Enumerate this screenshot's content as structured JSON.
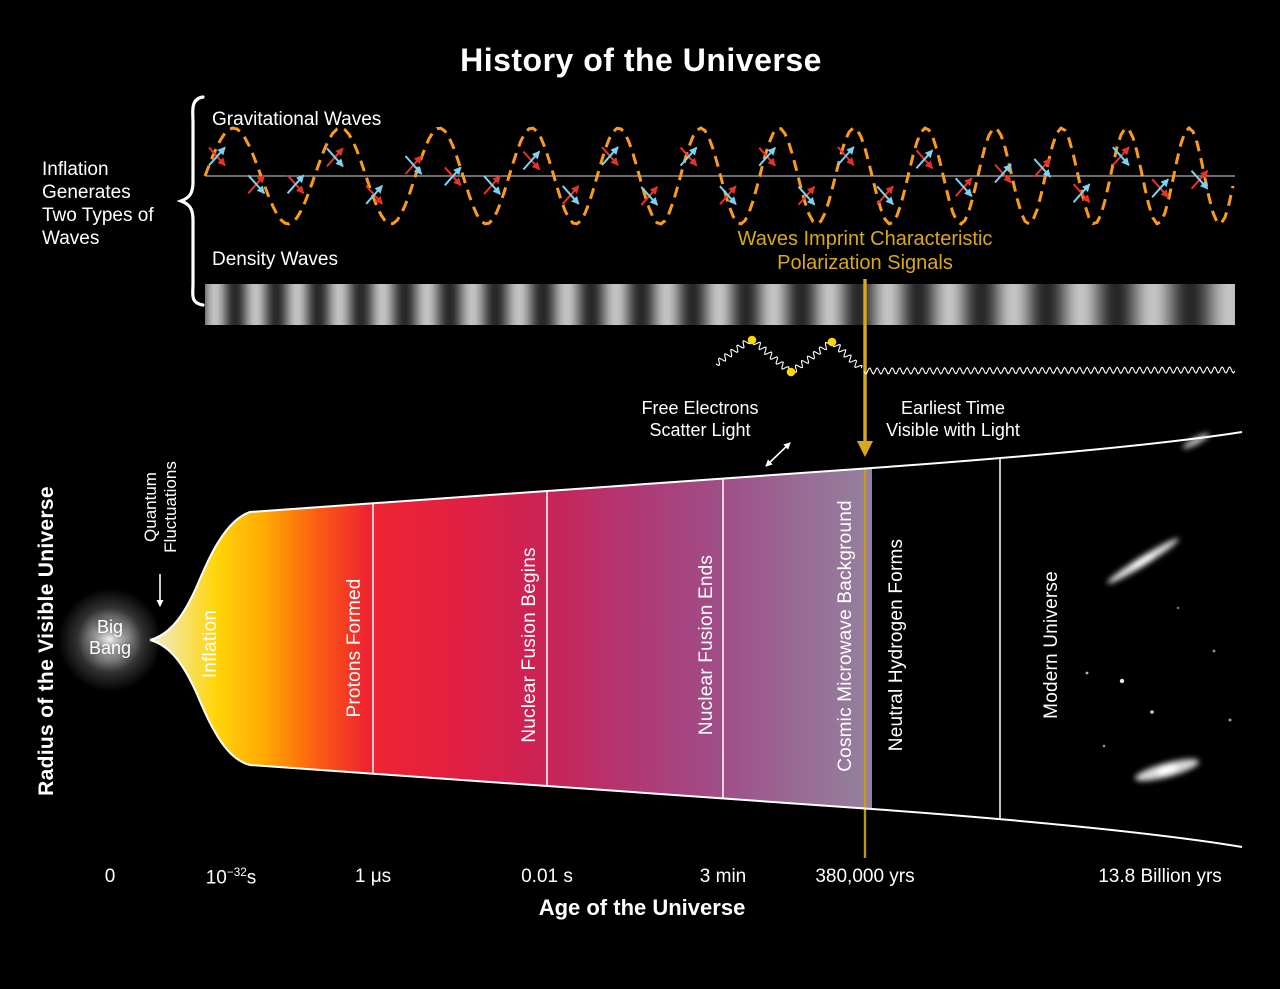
{
  "title": "History of the Universe",
  "inflation_note": {
    "lines": [
      "Inflation",
      "Generates",
      "Two Types of",
      "Waves"
    ]
  },
  "gravitational_waves_label": "Gravitational Waves",
  "density_waves_label": "Density Waves",
  "polarization_note": {
    "lines": [
      "Waves Imprint Characteristic",
      "Polarization Signals"
    ]
  },
  "free_electrons_note": {
    "lines": [
      "Free Electrons",
      "Scatter Light"
    ]
  },
  "earliest_time_note": {
    "lines": [
      "Earliest Time",
      "Visible with Light"
    ]
  },
  "quantum_fluctuations_label": {
    "lines": [
      "Quantum",
      "Fluctuations"
    ]
  },
  "big_bang_label": {
    "lines": [
      "Big",
      "Bang"
    ]
  },
  "y_axis_label": "Radius of the Visible Universe",
  "x_axis": {
    "title": "Age of the Universe",
    "ticks": [
      {
        "label": "0"
      },
      {
        "label": "10^-32 s",
        "base": "10",
        "sup": "−32",
        "suffix": "s"
      },
      {
        "label": "1 μs"
      },
      {
        "label": "0.01 s"
      },
      {
        "label": "3 min"
      },
      {
        "label": "380,000 yrs"
      },
      {
        "label": "13.8 Billion yrs"
      }
    ]
  },
  "epochs": [
    "Inflation",
    "Protons Formed",
    "Nuclear Fusion Begins",
    "Nuclear Fusion Ends",
    "Cosmic Microwave Background",
    "Neutral Hydrogen Forms",
    "Modern Universe"
  ],
  "colors": {
    "background": "#000000",
    "gold_accent": "#d7a91b",
    "wave_orange": "#f99b1d",
    "arrow_red": "#e63329",
    "arrow_cyan": "#7fd2ef",
    "electron_yellow": "#ffd700"
  }
}
